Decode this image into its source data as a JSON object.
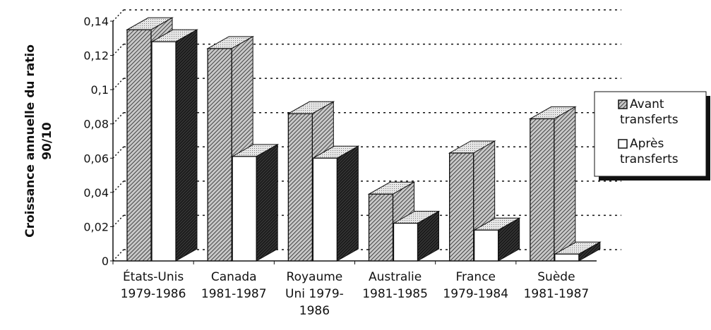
{
  "chart_data": {
    "type": "bar3d",
    "y_label": "Croissance annuelle du ratio\n90/10",
    "categories": [
      "États-Unis\n1979-1986",
      "Canada\n1981-1987",
      "Royaume\nUni 1979-\n1986",
      "Australie\n1981-1985",
      "France\n1979-1984",
      "Suède\n1981-1987"
    ],
    "series": [
      {
        "name": "Avant\ntransferts",
        "color": "#8a8a8a",
        "values": [
          0.135,
          0.124,
          0.086,
          0.039,
          0.063,
          0.083
        ]
      },
      {
        "name": "Après\ntransferts",
        "color": "#ffffff",
        "values": [
          0.128,
          0.061,
          0.06,
          0.022,
          0.018,
          0.004
        ]
      }
    ],
    "ylim": [
      0,
      0.14
    ],
    "yticks": [
      0,
      {
        "value": 0.02,
        "label": "0,02"
      },
      {
        "value": 0.04,
        "label": "0,04"
      },
      {
        "value": 0.06,
        "label": "0,06"
      },
      {
        "value": 0.08,
        "label": "0,08"
      },
      {
        "value": 0.1,
        "label": "0,1"
      },
      {
        "value": 0.12,
        "label": "0,12"
      },
      {
        "value": 0.14,
        "label": "0,14"
      }
    ],
    "grid": true,
    "legend": "right"
  }
}
